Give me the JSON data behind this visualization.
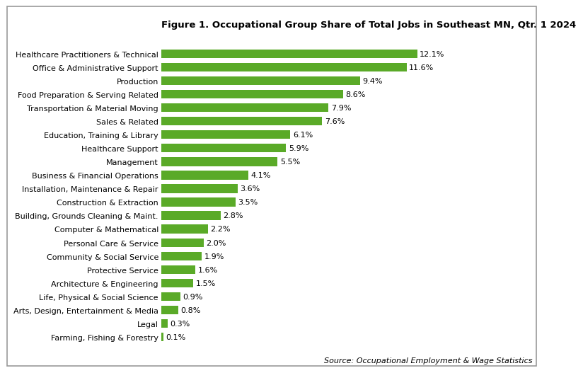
{
  "title": "Figure 1. Occupational Group Share of Total Jobs in Southeast MN, Qtr. 1 2024",
  "source": "Source: Occupational Employment & Wage Statistics",
  "categories": [
    "Farming, Fishing & Forestry",
    "Legal",
    "Arts, Design, Entertainment & Media",
    "Life, Physical & Social Science",
    "Architecture & Engineering",
    "Protective Service",
    "Community & Social Service",
    "Personal Care & Service",
    "Computer & Mathematical",
    "Building, Grounds Cleaning & Maint.",
    "Construction & Extraction",
    "Installation, Maintenance & Repair",
    "Business & Financial Operations",
    "Management",
    "Healthcare Support",
    "Education, Training & Library",
    "Sales & Related",
    "Transportation & Material Moving",
    "Food Preparation & Serving Related",
    "Production",
    "Office & Administrative Support",
    "Healthcare Practitioners & Technical"
  ],
  "values": [
    0.1,
    0.3,
    0.8,
    0.9,
    1.5,
    1.6,
    1.9,
    2.0,
    2.2,
    2.8,
    3.5,
    3.6,
    4.1,
    5.5,
    5.9,
    6.1,
    7.6,
    7.9,
    8.6,
    9.4,
    11.6,
    12.1
  ],
  "bar_color": "#5aaa28",
  "background_color": "#ffffff",
  "title_fontsize": 9.5,
  "label_fontsize": 8.0,
  "value_fontsize": 8.0,
  "source_fontsize": 8.0,
  "xlim": [
    0,
    14.5
  ]
}
